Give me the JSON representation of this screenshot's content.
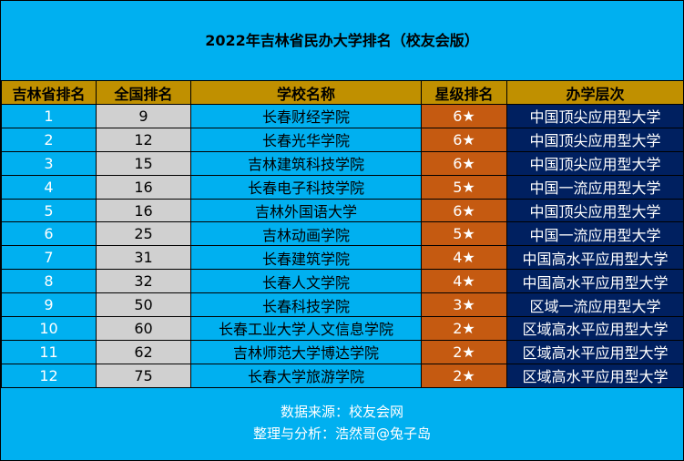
{
  "title": "2022年吉林省民办大学排名（校友会版）",
  "headers": [
    "吉林省排名",
    "全国排名",
    "学校名称",
    "星级排名",
    "办学层次"
  ],
  "rows": [
    [
      "1",
      "9",
      "长春财经学院",
      "6★",
      "中国顶尖应用型大学"
    ],
    [
      "2",
      "12",
      "长春光华学院",
      "6★",
      "中国顶尖应用型大学"
    ],
    [
      "3",
      "15",
      "吉林建筑科技学院",
      "6★",
      "中国顶尖应用型大学"
    ],
    [
      "4",
      "16",
      "长春电子科技学院",
      "5★",
      "中国一流应用型大学"
    ],
    [
      "5",
      "16",
      "吉林外国语大学",
      "6★",
      "中国顶尖应用型大学"
    ],
    [
      "6",
      "25",
      "吉林动画学院",
      "5★",
      "中国一流应用型大学"
    ],
    [
      "7",
      "31",
      "长春建筑学院",
      "4★",
      "中国高水平应用型大学"
    ],
    [
      "8",
      "32",
      "长春人文学院",
      "4★",
      "中国高水平应用型大学"
    ],
    [
      "9",
      "50",
      "长春科技学院",
      "3★",
      "区域一流应用型大学"
    ],
    [
      "10",
      "60",
      "长春工业大学人文信息学院",
      "2★",
      "区域高水平应用型大学"
    ],
    [
      "11",
      "62",
      "吉林师范大学博达学院",
      "2★",
      "区域高水平应用型大学"
    ],
    [
      "12",
      "75",
      "长春大学旅游学院",
      "2★",
      "区域高水平应用型大学"
    ]
  ],
  "footer": {
    "source": "数据来源：校友会网",
    "credit": "整理与分析：浩然哥@兔子岛"
  },
  "colors": {
    "background": "#00b0f0",
    "header": "#c09000",
    "national_rank": "#d0d0d0",
    "star": "#c55a11",
    "level": "#002060"
  }
}
